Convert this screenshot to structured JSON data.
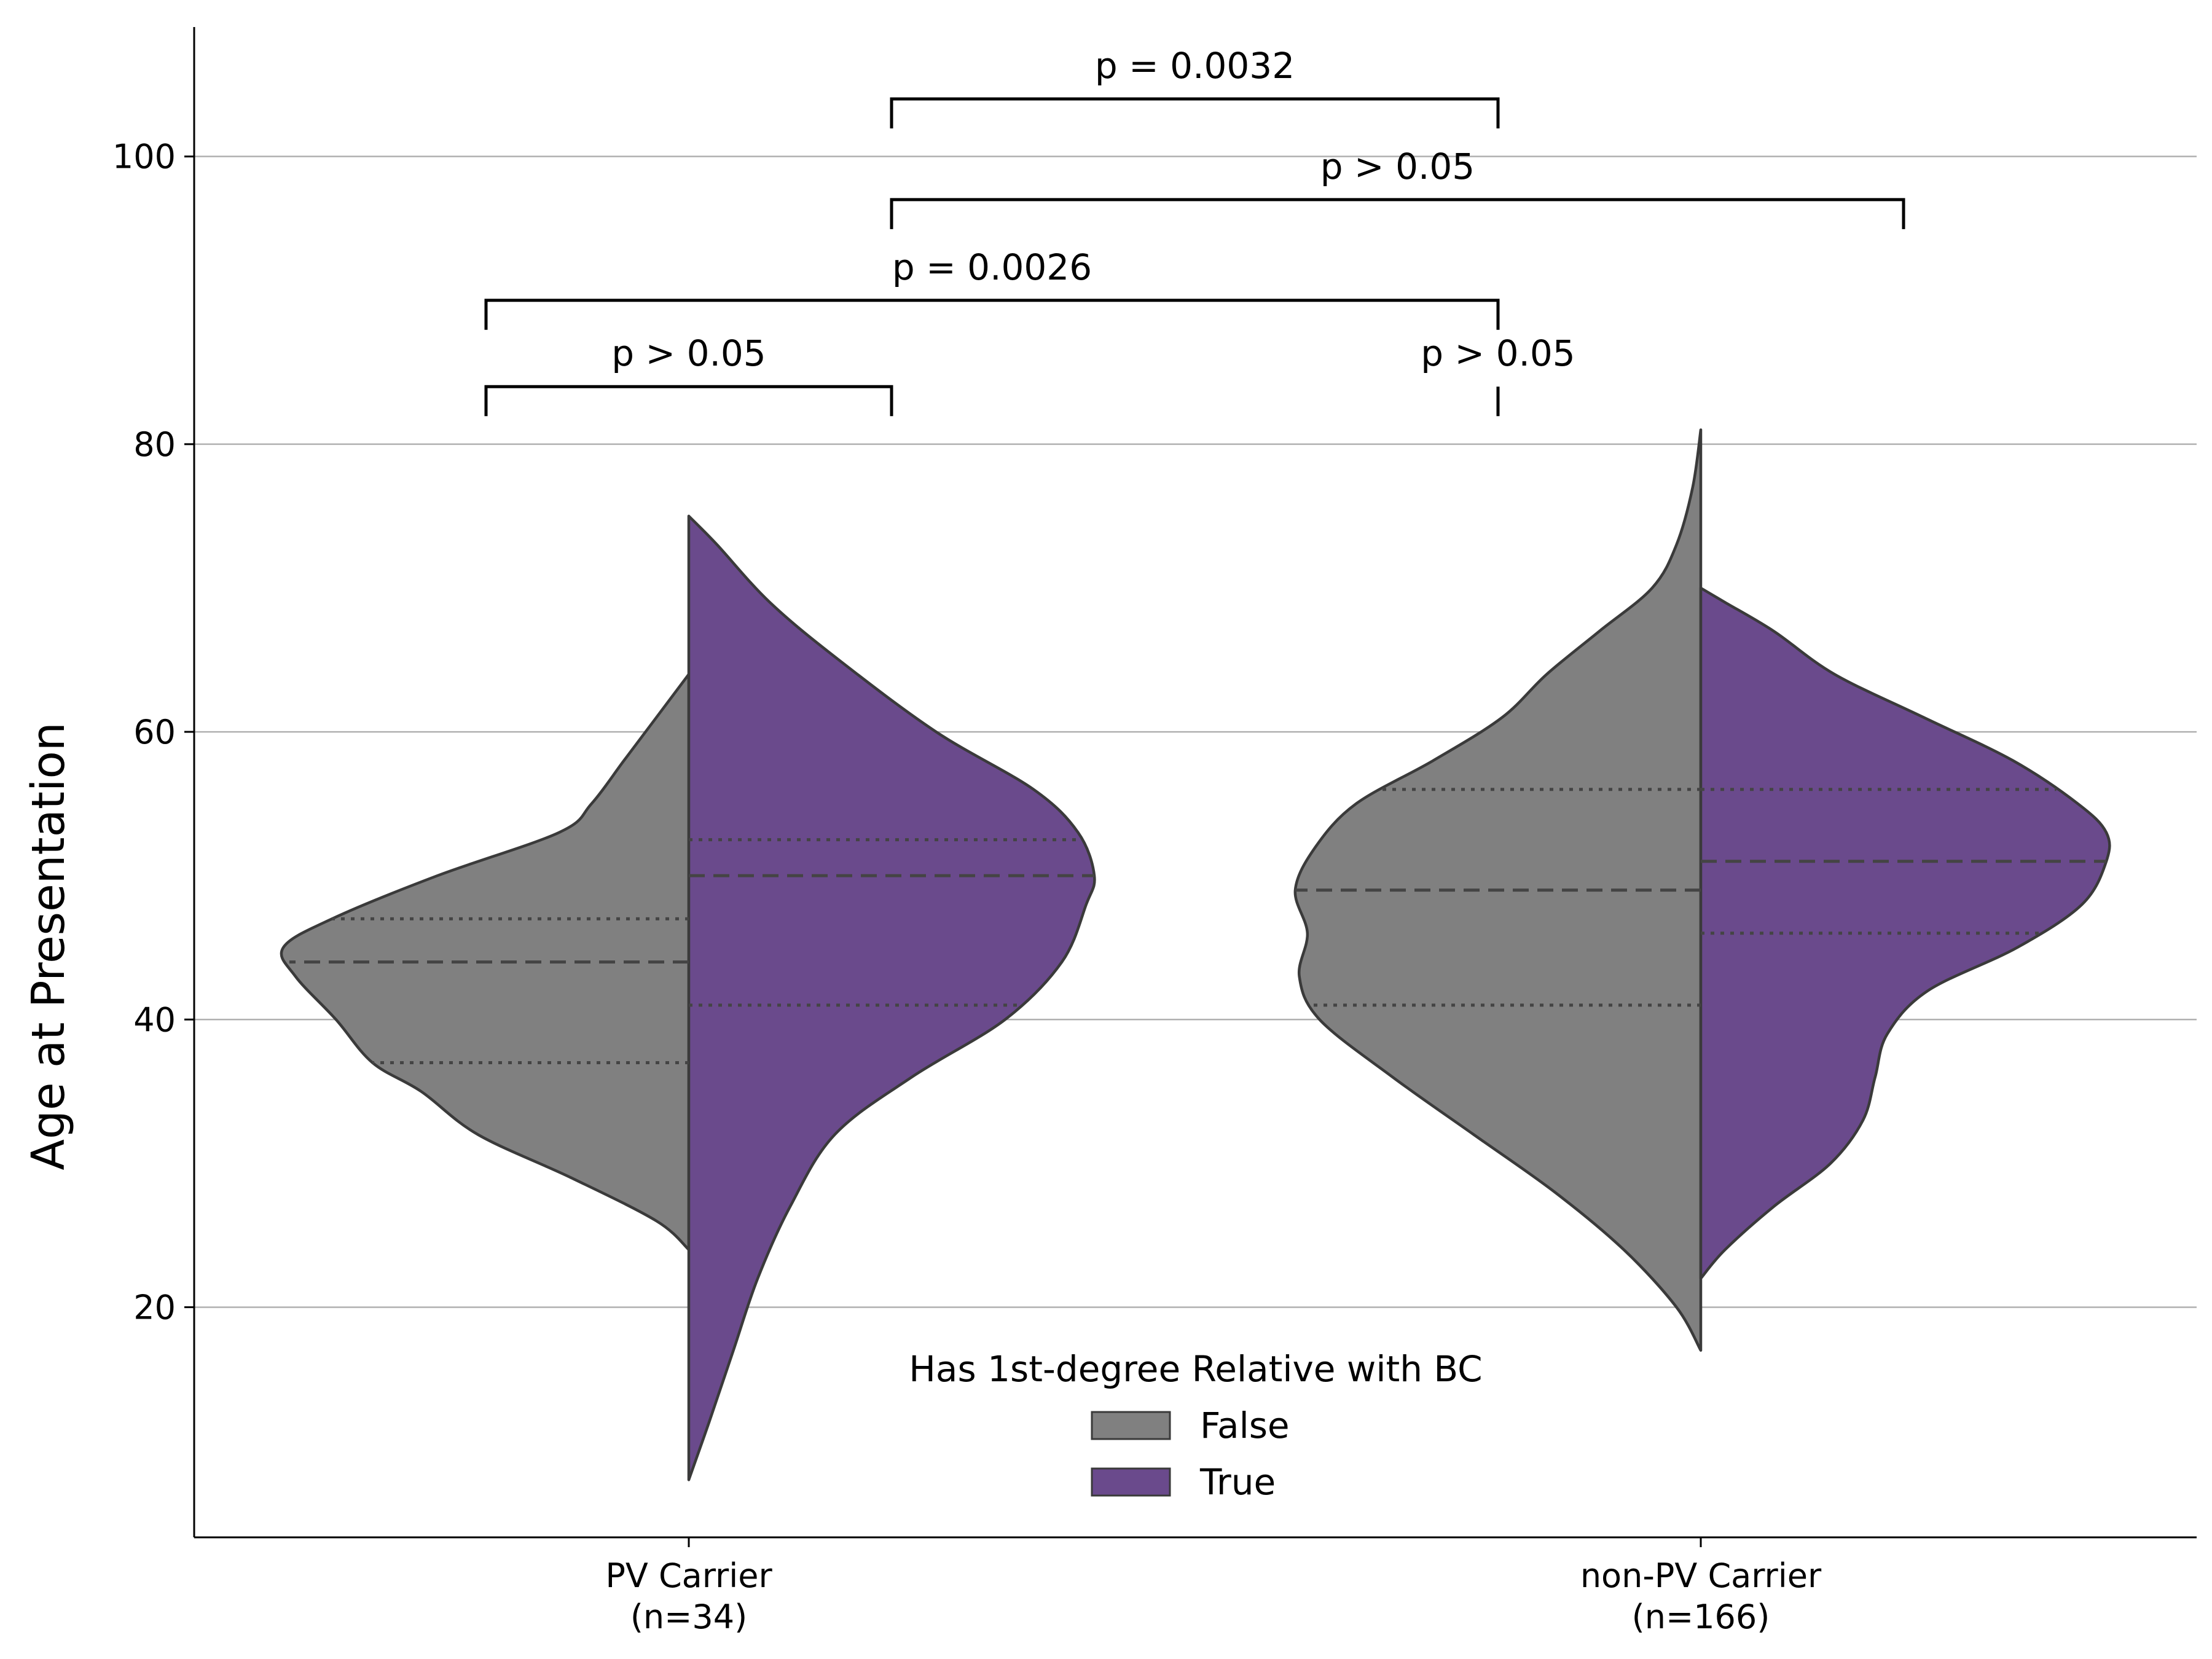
{
  "chart_data": {
    "type": "violin",
    "split": true,
    "ylabel": "Age at Presentation",
    "ylim": [
      4,
      109
    ],
    "yticks": [
      20,
      40,
      60,
      80,
      100
    ],
    "ygrid": true,
    "categories": [
      {
        "label_line1": "PV Carrier",
        "label_line2": "(n=34)"
      },
      {
        "label_line1": "non-PV Carrier",
        "label_line2": "(n=166)"
      }
    ],
    "hue": {
      "title": "Has 1st-degree Relative with BC",
      "levels": [
        {
          "name": "False",
          "color": "#808080"
        },
        {
          "name": "True",
          "color": "#6a4a8c"
        }
      ]
    },
    "series": [
      {
        "category": 0,
        "hue": "False",
        "side": "left",
        "range": [
          24,
          64
        ],
        "q1": 37,
        "median": 44,
        "q3": 47,
        "profile": [
          [
            24,
            0
          ],
          [
            26,
            0.08
          ],
          [
            29,
            0.29
          ],
          [
            32,
            0.52
          ],
          [
            35,
            0.66
          ],
          [
            37,
            0.78
          ],
          [
            40,
            0.87
          ],
          [
            43,
            0.97
          ],
          [
            45,
            1.0
          ],
          [
            47,
            0.88
          ],
          [
            50,
            0.62
          ],
          [
            53,
            0.32
          ],
          [
            55,
            0.24
          ],
          [
            58,
            0.16
          ],
          [
            61,
            0.08
          ],
          [
            64,
            0
          ]
        ]
      },
      {
        "category": 0,
        "hue": "True",
        "side": "right",
        "range": [
          8,
          75
        ],
        "q1": 41,
        "median": 50,
        "q3": 52.5,
        "profile": [
          [
            8,
            0
          ],
          [
            12,
            0.05
          ],
          [
            17,
            0.11
          ],
          [
            22,
            0.17
          ],
          [
            27,
            0.25
          ],
          [
            32,
            0.36
          ],
          [
            36,
            0.55
          ],
          [
            40,
            0.78
          ],
          [
            44,
            0.92
          ],
          [
            48,
            0.98
          ],
          [
            50,
            1.0
          ],
          [
            53,
            0.96
          ],
          [
            56,
            0.85
          ],
          [
            60,
            0.61
          ],
          [
            65,
            0.37
          ],
          [
            69,
            0.2
          ],
          [
            73,
            0.07
          ],
          [
            75,
            0
          ]
        ]
      },
      {
        "category": 1,
        "hue": "False",
        "side": "left",
        "range": [
          17,
          81
        ],
        "q1": 41,
        "median": 49,
        "q3": 56,
        "profile": [
          [
            17,
            0
          ],
          [
            20,
            0.06
          ],
          [
            24,
            0.19
          ],
          [
            28,
            0.36
          ],
          [
            32,
            0.56
          ],
          [
            36,
            0.76
          ],
          [
            40,
            0.94
          ],
          [
            43,
            0.99
          ],
          [
            46,
            0.97
          ],
          [
            49,
            1.0
          ],
          [
            52,
            0.95
          ],
          [
            55,
            0.85
          ],
          [
            58,
            0.66
          ],
          [
            61,
            0.49
          ],
          [
            64,
            0.38
          ],
          [
            67,
            0.25
          ],
          [
            70,
            0.12
          ],
          [
            73,
            0.06
          ],
          [
            77,
            0.02
          ],
          [
            81,
            0
          ]
        ]
      },
      {
        "category": 1,
        "hue": "True",
        "side": "right",
        "range": [
          22,
          70
        ],
        "q1": 46,
        "median": 51,
        "q3": 56,
        "profile": [
          [
            22,
            0
          ],
          [
            24,
            0.06
          ],
          [
            27,
            0.18
          ],
          [
            30,
            0.32
          ],
          [
            33,
            0.4
          ],
          [
            36,
            0.43
          ],
          [
            39,
            0.46
          ],
          [
            42,
            0.56
          ],
          [
            45,
            0.78
          ],
          [
            48,
            0.94
          ],
          [
            51,
            1.0
          ],
          [
            53,
            1.0
          ],
          [
            55,
            0.93
          ],
          [
            58,
            0.77
          ],
          [
            61,
            0.55
          ],
          [
            64,
            0.33
          ],
          [
            67,
            0.18
          ],
          [
            69,
            0.06
          ],
          [
            70,
            0
          ]
        ]
      }
    ],
    "annotations": [
      {
        "from": 0,
        "to": 1,
        "group_from": 0,
        "group_to": 0,
        "y": 84,
        "text": "p > 0.05"
      },
      {
        "from": 0,
        "to": 0,
        "group_from": 1,
        "group_to": 1,
        "y": 84,
        "text": "p > 0.05"
      },
      {
        "from": 0,
        "to": 0,
        "group_from": 0,
        "group_to": 1,
        "y": 90,
        "text": "p = 0.0026"
      },
      {
        "from": 1,
        "to": 1,
        "group_from": 0,
        "group_to": 1,
        "y": 97,
        "text": "p > 0.05"
      },
      {
        "from": 1,
        "to": 0,
        "group_from": 0,
        "group_to": 1,
        "y": 104,
        "text": "p = 0.0032"
      }
    ]
  }
}
